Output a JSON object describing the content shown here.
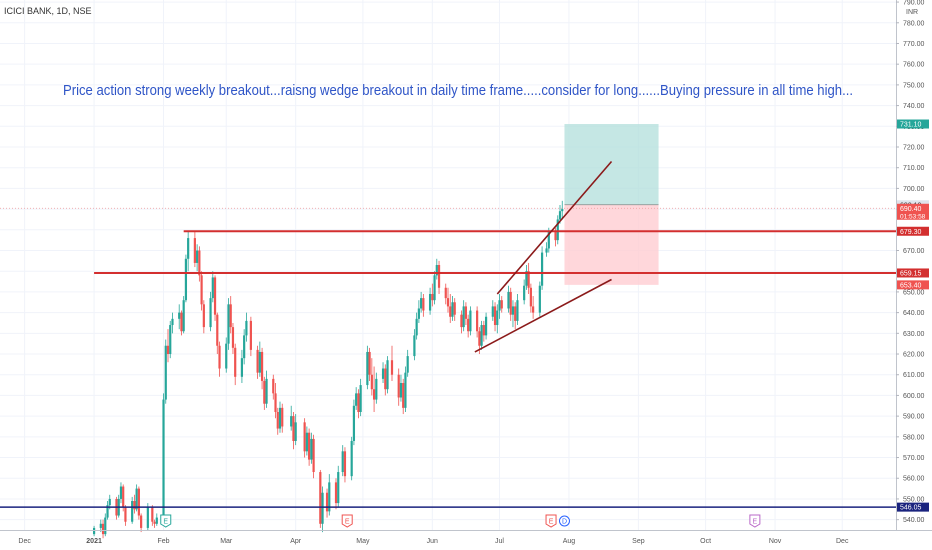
{
  "header": {
    "symbol": "ICICI BANK, 1D, NSE",
    "currency": "INR"
  },
  "annotation": "Price action strong weekly breakout...raisng wedge breakout in daily time frame.....consider for long......Buying pressure in all time high...",
  "price_tags": {
    "target": "731.10",
    "entry": "692.10",
    "current": "690.40",
    "countdown": "01:53:58",
    "resistance": "679.30",
    "support": "659.15",
    "stop": "653.40",
    "blue_line": "546.05"
  },
  "events": [
    {
      "label": "E",
      "date": "2021-02-02",
      "color": "#26a69a"
    },
    {
      "label": "E",
      "date": "2021-04-24",
      "color": "#ef5350"
    },
    {
      "label": "E",
      "date": "2021-07-24",
      "color": "#ef5350"
    },
    {
      "label": "D",
      "date": "2021-07-30",
      "color": "#2962ff"
    },
    {
      "label": "E",
      "date": "2021-10-23",
      "color": "#ba68c8"
    }
  ],
  "colors": {
    "up": "#26a69a",
    "down": "#ef5350",
    "level": "#d32f2f",
    "blue": "#1a237e",
    "wedge": "#8b1a1a",
    "text": "#2f55c7",
    "target_zone": "#b2dfdb",
    "stop_zone": "#ffcdd2"
  },
  "chart_data": {
    "type": "candlestick",
    "x_axis": [
      "Dec",
      "2021",
      "Feb",
      "Mar",
      "Apr",
      "May",
      "Jun",
      "Jul",
      "Aug",
      "Sep",
      "Oct",
      "Nov",
      "Dec"
    ],
    "y_ticks": [
      540,
      550,
      560,
      570,
      580,
      590,
      600,
      610,
      620,
      630,
      640,
      650,
      660,
      670,
      680,
      690,
      700,
      710,
      720,
      730,
      740,
      750,
      760,
      770,
      780,
      790
    ],
    "ylim": [
      535,
      791
    ],
    "xlim": [
      "2020-11-20",
      "2021-12-25"
    ],
    "horizontal_levels": [
      679.3,
      659.15,
      546.05
    ],
    "wedge_upper": [
      [
        "2021-06-30",
        649
      ],
      [
        "2021-08-20",
        713
      ]
    ],
    "wedge_lower": [
      [
        "2021-06-20",
        621
      ],
      [
        "2021-08-20",
        656
      ]
    ],
    "long_position": {
      "start": "2021-07-30",
      "end": "2021-09-10",
      "entry": 692.1,
      "target": 731.1,
      "stop": 653.4
    },
    "candles": [
      [
        "2021-01-01",
        533,
        537,
        532,
        536
      ],
      [
        "2021-01-04",
        536,
        540,
        534,
        538
      ],
      [
        "2021-01-05",
        538,
        540,
        531,
        533
      ],
      [
        "2021-01-06",
        533,
        543,
        532,
        541
      ],
      [
        "2021-01-07",
        541,
        549,
        540,
        547
      ],
      [
        "2021-01-08",
        547,
        552,
        545,
        550
      ],
      [
        "2021-01-11",
        550,
        551,
        540,
        542
      ],
      [
        "2021-01-12",
        542,
        552,
        541,
        550
      ],
      [
        "2021-01-13",
        550,
        558,
        548,
        556
      ],
      [
        "2021-01-14",
        556,
        557,
        544,
        546
      ],
      [
        "2021-01-15",
        546,
        547,
        537,
        539
      ],
      [
        "2021-01-18",
        539,
        551,
        538,
        549
      ],
      [
        "2021-01-19",
        549,
        552,
        543,
        545
      ],
      [
        "2021-01-20",
        545,
        557,
        544,
        555
      ],
      [
        "2021-01-21",
        555,
        556,
        540,
        542
      ],
      [
        "2021-01-22",
        542,
        543,
        534,
        536
      ],
      [
        "2021-01-25",
        536,
        548,
        535,
        546
      ],
      [
        "2021-01-27",
        546,
        547,
        537,
        539
      ],
      [
        "2021-01-28",
        539,
        540,
        536,
        538
      ],
      [
        "2021-01-29",
        538,
        543,
        537,
        541
      ],
      [
        "2021-02-01",
        541,
        601,
        540,
        598
      ],
      [
        "2021-02-02",
        598,
        627,
        596,
        624
      ],
      [
        "2021-02-03",
        624,
        632,
        616,
        620
      ],
      [
        "2021-02-04",
        620,
        636,
        618,
        634
      ],
      [
        "2021-02-05",
        634,
        640,
        630,
        637
      ],
      [
        "2021-02-08",
        637,
        644,
        632,
        640
      ],
      [
        "2021-02-09",
        640,
        641,
        629,
        631
      ],
      [
        "2021-02-10",
        631,
        648,
        630,
        646
      ],
      [
        "2021-02-11",
        646,
        668,
        645,
        666
      ],
      [
        "2021-02-12",
        666,
        679,
        660,
        676
      ],
      [
        "2021-02-15",
        676,
        679,
        662,
        664
      ],
      [
        "2021-02-16",
        664,
        673,
        660,
        670
      ],
      [
        "2021-02-17",
        670,
        672,
        655,
        658
      ],
      [
        "2021-02-18",
        658,
        660,
        641,
        644
      ],
      [
        "2021-02-19",
        644,
        646,
        630,
        633
      ],
      [
        "2021-02-22",
        633,
        650,
        631,
        647
      ],
      [
        "2021-02-23",
        647,
        660,
        645,
        657
      ],
      [
        "2021-02-24",
        657,
        658,
        636,
        639
      ],
      [
        "2021-02-25",
        639,
        640,
        620,
        624
      ],
      [
        "2021-02-26",
        624,
        626,
        609,
        613
      ],
      [
        "2021-03-01",
        613,
        628,
        611,
        625
      ],
      [
        "2021-03-02",
        625,
        647,
        622,
        644
      ],
      [
        "2021-03-03",
        644,
        648,
        630,
        633
      ],
      [
        "2021-03-04",
        633,
        635,
        620,
        623
      ],
      [
        "2021-03-05",
        623,
        625,
        605,
        609
      ],
      [
        "2021-03-08",
        609,
        622,
        606,
        618
      ],
      [
        "2021-03-09",
        618,
        632,
        615,
        629
      ],
      [
        "2021-03-10",
        629,
        640,
        626,
        636
      ],
      [
        "2021-03-12",
        636,
        638,
        619,
        622
      ],
      [
        "2021-03-15",
        622,
        624,
        608,
        611
      ],
      [
        "2021-03-16",
        611,
        626,
        609,
        621
      ],
      [
        "2021-03-17",
        621,
        623,
        603,
        607
      ],
      [
        "2021-03-18",
        607,
        609,
        593,
        596
      ],
      [
        "2021-03-19",
        596,
        612,
        594,
        608
      ],
      [
        "2021-03-22",
        608,
        610,
        598,
        601
      ],
      [
        "2021-03-23",
        601,
        606,
        589,
        592
      ],
      [
        "2021-03-24",
        592,
        594,
        581,
        584
      ],
      [
        "2021-03-25",
        584,
        597,
        582,
        594
      ],
      [
        "2021-03-26",
        594,
        596,
        582,
        585
      ],
      [
        "2021-03-30",
        585,
        595,
        583,
        590
      ],
      [
        "2021-03-31",
        590,
        592,
        574,
        578
      ],
      [
        "2021-04-01",
        578,
        591,
        576,
        587
      ],
      [
        "2021-04-05",
        587,
        589,
        570,
        573
      ],
      [
        "2021-04-06",
        573,
        585,
        571,
        582
      ],
      [
        "2021-04-07",
        582,
        584,
        566,
        569
      ],
      [
        "2021-04-08",
        569,
        582,
        567,
        579
      ],
      [
        "2021-04-09",
        579,
        581,
        560,
        563
      ],
      [
        "2021-04-12",
        563,
        564,
        536,
        538
      ],
      [
        "2021-04-13",
        538,
        556,
        534,
        553
      ],
      [
        "2021-04-15",
        553,
        555,
        541,
        544
      ],
      [
        "2021-04-16",
        544,
        562,
        542,
        558
      ],
      [
        "2021-04-19",
        558,
        560,
        545,
        548
      ],
      [
        "2021-04-20",
        548,
        566,
        546,
        563
      ],
      [
        "2021-04-22",
        563,
        576,
        561,
        573
      ],
      [
        "2021-04-23",
        573,
        575,
        558,
        561
      ],
      [
        "2021-04-26",
        561,
        580,
        559,
        578
      ],
      [
        "2021-04-27",
        578,
        598,
        576,
        595
      ],
      [
        "2021-04-28",
        595,
        604,
        593,
        601
      ],
      [
        "2021-04-29",
        601,
        603,
        589,
        592
      ],
      [
        "2021-04-30",
        592,
        608,
        590,
        605
      ],
      [
        "2021-05-03",
        605,
        624,
        603,
        621
      ],
      [
        "2021-05-04",
        621,
        623,
        607,
        610
      ],
      [
        "2021-05-05",
        610,
        618,
        600,
        603
      ],
      [
        "2021-05-06",
        603,
        614,
        592,
        598
      ],
      [
        "2021-05-07",
        598,
        611,
        596,
        608
      ],
      [
        "2021-05-10",
        608,
        616,
        606,
        613
      ],
      [
        "2021-05-11",
        613,
        615,
        600,
        603
      ],
      [
        "2021-05-12",
        603,
        619,
        601,
        617
      ],
      [
        "2021-05-14",
        617,
        624,
        607,
        610
      ],
      [
        "2021-05-17",
        610,
        613,
        595,
        599
      ],
      [
        "2021-05-18",
        599,
        610,
        597,
        606
      ],
      [
        "2021-05-19",
        606,
        608,
        591,
        594
      ],
      [
        "2021-05-20",
        594,
        614,
        592,
        611
      ],
      [
        "2021-05-21",
        611,
        622,
        609,
        619
      ],
      [
        "2021-05-24",
        619,
        632,
        617,
        629
      ],
      [
        "2021-05-25",
        629,
        640,
        627,
        637
      ],
      [
        "2021-05-26",
        637,
        646,
        635,
        642
      ],
      [
        "2021-05-27",
        642,
        650,
        640,
        647
      ],
      [
        "2021-05-28",
        647,
        649,
        638,
        641
      ],
      [
        "2021-05-31",
        641,
        652,
        639,
        649
      ],
      [
        "2021-06-01",
        649,
        654,
        643,
        646
      ],
      [
        "2021-06-02",
        646,
        660,
        644,
        658
      ],
      [
        "2021-06-03",
        658,
        666,
        656,
        663
      ],
      [
        "2021-06-04",
        663,
        665,
        649,
        652
      ],
      [
        "2021-06-07",
        652,
        654,
        644,
        647
      ],
      [
        "2021-06-08",
        647,
        652,
        640,
        643
      ],
      [
        "2021-06-09",
        643,
        649,
        635,
        638
      ],
      [
        "2021-06-10",
        638,
        648,
        636,
        645
      ],
      [
        "2021-06-11",
        645,
        647,
        636,
        639
      ],
      [
        "2021-06-14",
        639,
        641,
        630,
        633
      ],
      [
        "2021-06-15",
        633,
        646,
        631,
        643
      ],
      [
        "2021-06-16",
        643,
        645,
        634,
        637
      ],
      [
        "2021-06-17",
        637,
        639,
        628,
        631
      ],
      [
        "2021-06-18",
        631,
        643,
        629,
        641
      ],
      [
        "2021-06-21",
        641,
        643,
        628,
        631
      ],
      [
        "2021-06-22",
        631,
        633,
        620,
        624
      ],
      [
        "2021-06-23",
        624,
        636,
        622,
        634
      ],
      [
        "2021-06-24",
        634,
        636,
        626,
        629
      ],
      [
        "2021-06-25",
        629,
        640,
        627,
        638
      ],
      [
        "2021-06-28",
        638,
        646,
        636,
        643
      ],
      [
        "2021-06-29",
        643,
        645,
        631,
        634
      ],
      [
        "2021-06-30",
        634,
        644,
        630,
        641
      ],
      [
        "2021-07-01",
        641,
        649,
        637,
        646
      ],
      [
        "2021-07-02",
        646,
        648,
        640,
        642
      ],
      [
        "2021-07-05",
        642,
        653,
        640,
        650
      ],
      [
        "2021-07-06",
        650,
        652,
        636,
        639
      ],
      [
        "2021-07-07",
        639,
        646,
        633,
        643
      ],
      [
        "2021-07-08",
        643,
        645,
        632,
        636
      ],
      [
        "2021-07-09",
        636,
        649,
        634,
        646
      ],
      [
        "2021-07-12",
        646,
        656,
        644,
        653
      ],
      [
        "2021-07-13",
        653,
        663,
        651,
        660
      ],
      [
        "2021-07-14",
        660,
        664,
        649,
        652
      ],
      [
        "2021-07-15",
        652,
        654,
        640,
        643
      ],
      [
        "2021-07-16",
        643,
        648,
        637,
        640
      ],
      [
        "2021-07-19",
        640,
        655,
        638,
        653
      ],
      [
        "2021-07-20",
        653,
        672,
        651,
        669
      ],
      [
        "2021-07-22",
        669,
        674,
        667,
        671
      ],
      [
        "2021-07-23",
        671,
        681,
        669,
        679
      ],
      [
        "2021-07-26",
        679,
        681,
        672,
        675
      ],
      [
        "2021-07-27",
        675,
        687,
        673,
        685
      ],
      [
        "2021-07-28",
        685,
        692,
        683,
        689
      ],
      [
        "2021-07-29",
        689,
        694,
        685,
        690
      ]
    ]
  }
}
